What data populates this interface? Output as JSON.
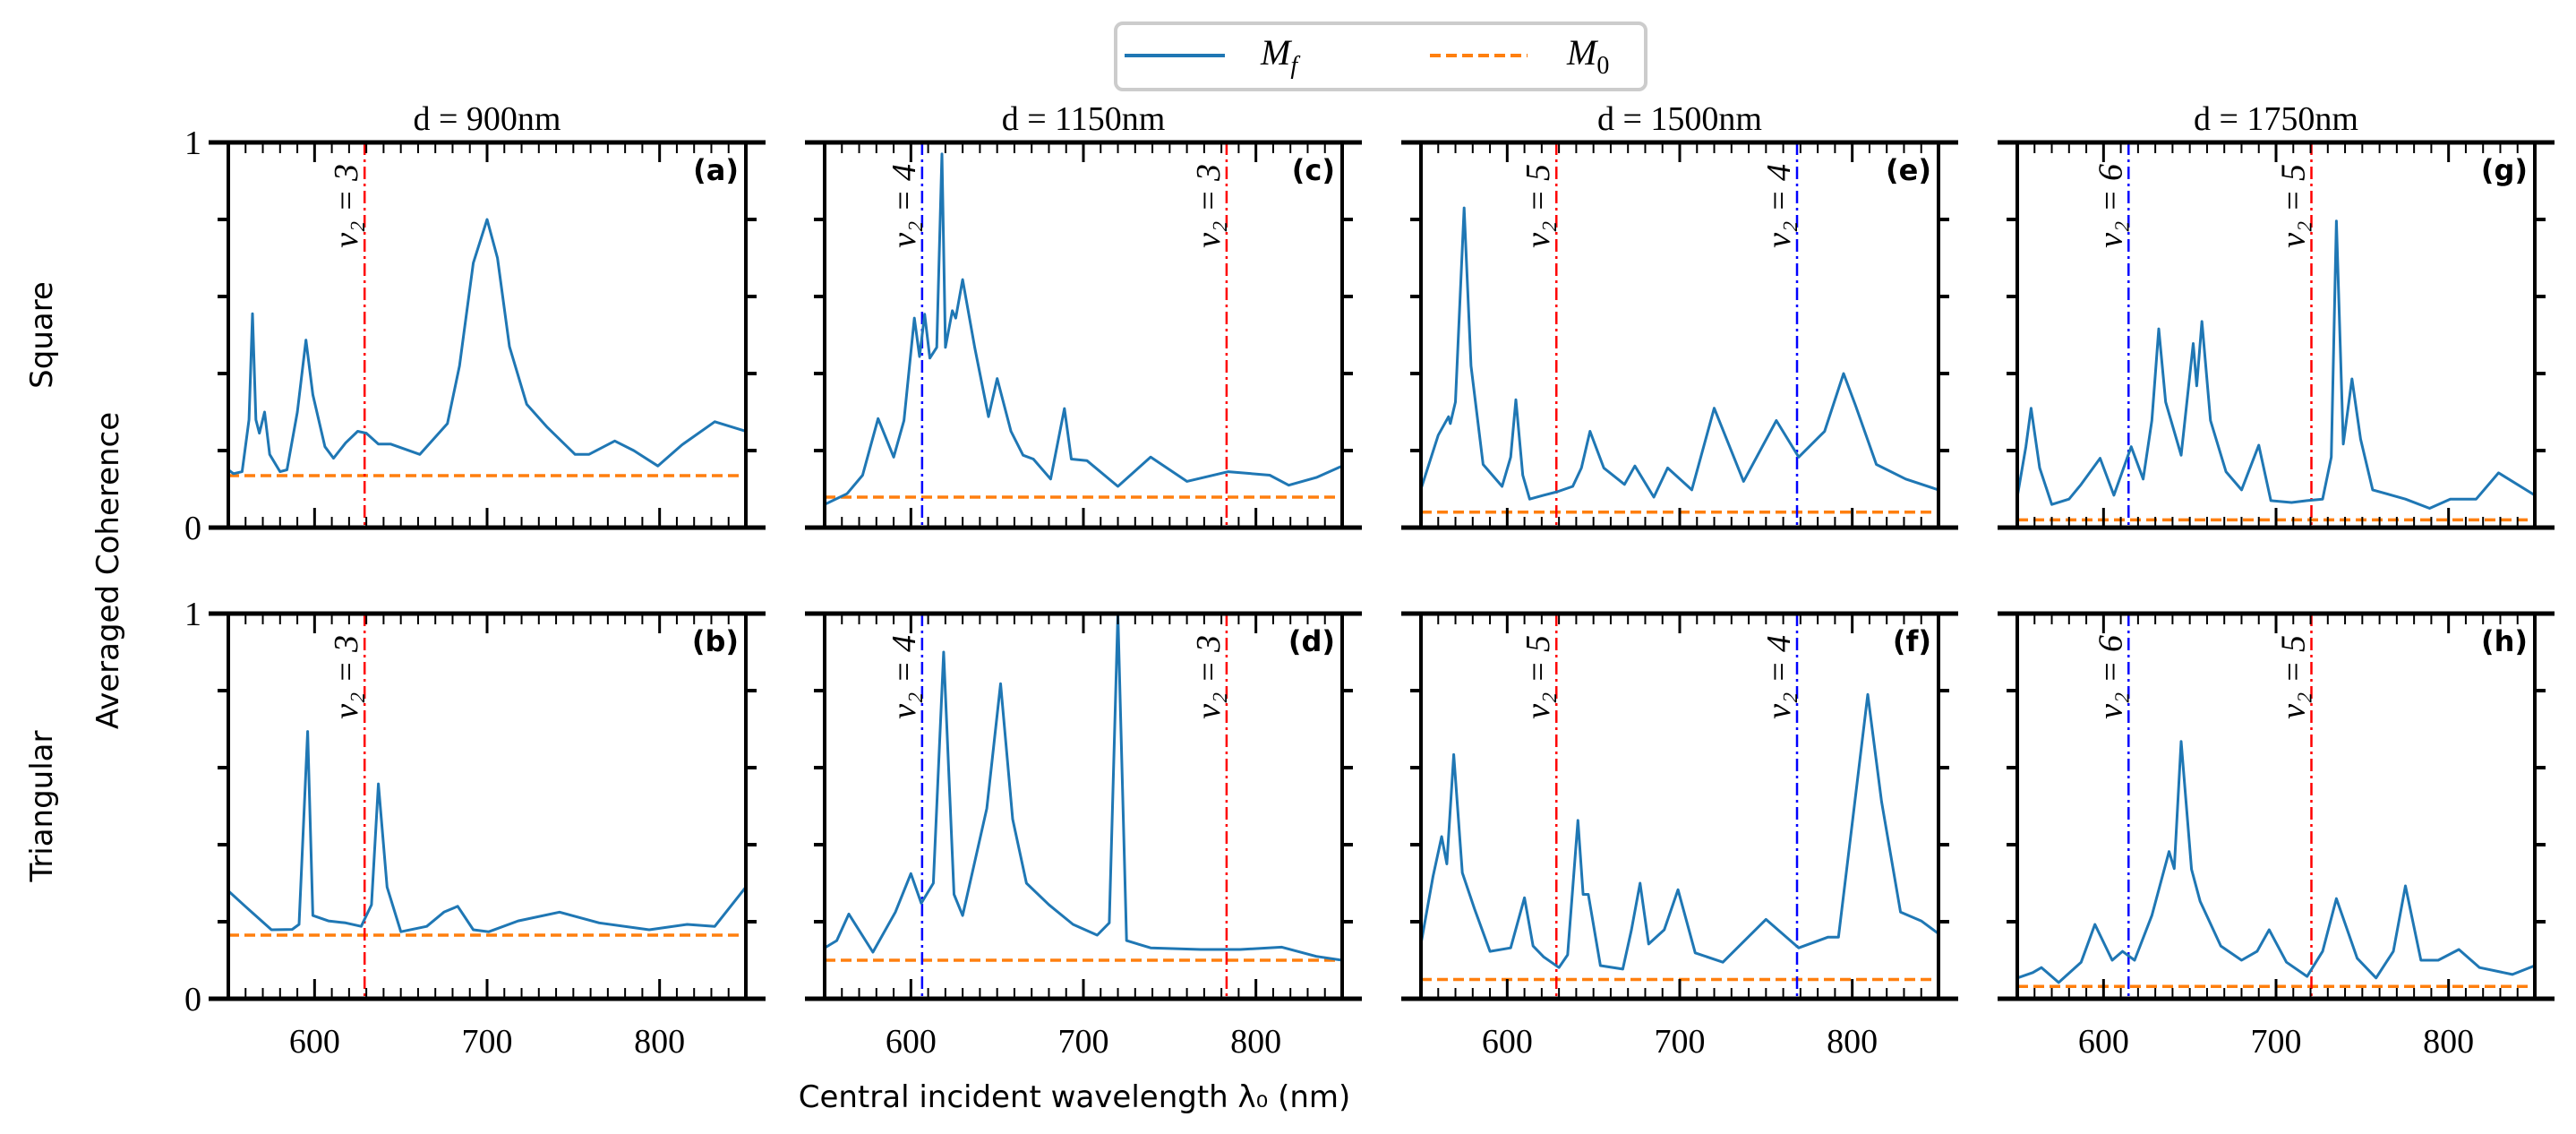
{
  "chart_data": {
    "type": "line",
    "legend": {
      "placement": "top-center",
      "entries": [
        {
          "symbol": "M",
          "sub": "f",
          "color": "#1f77b4",
          "style": "solid"
        },
        {
          "symbol": "M",
          "sub": "0",
          "color": "#ff7f0e",
          "style": "dashed"
        }
      ]
    },
    "xlabel": "Central incident wavelength λ₀ (nm)",
    "ylabel": "Averaged Coherence",
    "row_labels": [
      "Square",
      "Triangular"
    ],
    "xlim": [
      550,
      850
    ],
    "ylim": [
      0,
      1
    ],
    "x_ticks": [
      600,
      700,
      800
    ],
    "x_tick_labels": [
      "600",
      "700",
      "800"
    ],
    "y_ticks": [
      0,
      0.2,
      0.4,
      0.6,
      0.8,
      1.0
    ],
    "y_tick_labels": {
      "0": "0",
      "1": "1"
    },
    "colors": {
      "Mf": "#1f77b4",
      "M0": "#ff7f0e",
      "red_line": "#ff0000",
      "blue_line": "#0000ff"
    },
    "panels": [
      {
        "label": "(a)",
        "title": "d = 900nm",
        "row": "Square",
        "M0": 0.135,
        "vlines": [
          {
            "x": 629,
            "label": "ν₂ = 3",
            "color": "#ff0000"
          }
        ],
        "Mf": {
          "x": [
            550,
            553,
            558,
            562,
            564,
            566,
            568,
            571,
            574,
            580,
            584,
            590,
            595,
            599,
            606,
            611,
            618,
            625,
            630,
            637,
            644,
            661,
            677,
            684,
            692,
            700,
            706,
            713,
            723,
            735,
            751,
            759,
            774,
            785,
            799,
            813,
            832,
            850
          ],
          "y": [
            0.15,
            0.14,
            0.145,
            0.28,
            0.555,
            0.28,
            0.245,
            0.3,
            0.19,
            0.145,
            0.15,
            0.3,
            0.487,
            0.345,
            0.21,
            0.18,
            0.22,
            0.25,
            0.245,
            0.217,
            0.217,
            0.19,
            0.27,
            0.42,
            0.687,
            0.8,
            0.7,
            0.47,
            0.32,
            0.26,
            0.19,
            0.19,
            0.225,
            0.2,
            0.16,
            0.215,
            0.275,
            0.25
          ]
        }
      },
      {
        "label": "(b)",
        "title": "",
        "row": "Triangular",
        "M0": 0.165,
        "vlines": [
          {
            "x": 629,
            "label": "ν₂ = 3",
            "color": "#ff0000"
          }
        ],
        "Mf": {
          "x": [
            550,
            560,
            575,
            587,
            591,
            596,
            599,
            608,
            618,
            627,
            633,
            637,
            642,
            650,
            665,
            675,
            683,
            692,
            701,
            718,
            742,
            765,
            794,
            816,
            832,
            850
          ],
          "y": [
            0.28,
            0.239,
            0.179,
            0.18,
            0.193,
            0.694,
            0.216,
            0.202,
            0.197,
            0.188,
            0.244,
            0.558,
            0.29,
            0.174,
            0.188,
            0.225,
            0.24,
            0.179,
            0.174,
            0.202,
            0.225,
            0.197,
            0.179,
            0.193,
            0.188,
            0.29
          ]
        }
      },
      {
        "label": "(c)",
        "title": "d = 1150nm",
        "row": "Square",
        "M0": 0.079,
        "vlines": [
          {
            "x": 606.5,
            "label": "ν₂ = 4",
            "color": "#0000ff"
          },
          {
            "x": 783,
            "label": "ν₂ = 3",
            "color": "#ff0000"
          }
        ],
        "Mf": {
          "x": [
            550,
            563,
            572,
            581,
            590,
            596,
            602,
            605,
            608,
            611,
            615,
            618,
            620,
            624,
            626,
            630,
            637,
            645,
            650,
            658,
            665,
            671,
            681,
            689,
            693,
            702,
            720,
            739,
            760,
            784,
            808,
            819,
            835,
            850
          ],
          "y": [
            0.06,
            0.088,
            0.136,
            0.283,
            0.183,
            0.278,
            0.544,
            0.444,
            0.554,
            0.44,
            0.468,
            0.97,
            0.468,
            0.563,
            0.544,
            0.644,
            0.468,
            0.288,
            0.387,
            0.25,
            0.188,
            0.178,
            0.126,
            0.309,
            0.178,
            0.174,
            0.107,
            0.183,
            0.12,
            0.145,
            0.136,
            0.11,
            0.13,
            0.16
          ]
        }
      },
      {
        "label": "(d)",
        "title": "",
        "row": "Triangular",
        "M0": 0.1,
        "vlines": [
          {
            "x": 606.5,
            "label": "ν₂ = 4",
            "color": "#0000ff"
          },
          {
            "x": 783,
            "label": "ν₂ = 3",
            "color": "#ff0000"
          }
        ],
        "Mf": {
          "x": [
            550,
            557,
            564,
            578,
            591,
            600,
            606,
            613,
            619,
            625,
            630,
            644,
            652,
            659,
            667,
            680,
            694,
            708,
            715,
            720,
            725,
            739,
            768,
            791,
            815,
            835,
            850
          ],
          "y": [
            0.132,
            0.151,
            0.22,
            0.121,
            0.225,
            0.325,
            0.248,
            0.3,
            0.9,
            0.271,
            0.216,
            0.494,
            0.818,
            0.466,
            0.3,
            0.244,
            0.193,
            0.165,
            0.197,
            1.0,
            0.151,
            0.132,
            0.128,
            0.128,
            0.134,
            0.11,
            0.1
          ]
        }
      },
      {
        "label": "(e)",
        "title": "d = 1500nm",
        "row": "Square",
        "M0": 0.04,
        "vlines": [
          {
            "x": 628.5,
            "label": "ν₂ = 5",
            "color": "#ff0000"
          },
          {
            "x": 768,
            "label": "ν₂ = 4",
            "color": "#0000ff"
          }
        ],
        "Mf": {
          "x": [
            550,
            560,
            566,
            567,
            570,
            575,
            579,
            586,
            597,
            602,
            605,
            609,
            613,
            621,
            629,
            638,
            643,
            648,
            656,
            668,
            674,
            685,
            693,
            707,
            720,
            737,
            756,
            769,
            784,
            795,
            802,
            814,
            831,
            850
          ],
          "y": [
            0.1,
            0.24,
            0.288,
            0.27,
            0.326,
            0.83,
            0.42,
            0.164,
            0.107,
            0.183,
            0.332,
            0.136,
            0.074,
            0.084,
            0.093,
            0.107,
            0.155,
            0.25,
            0.155,
            0.112,
            0.16,
            0.079,
            0.155,
            0.098,
            0.31,
            0.12,
            0.278,
            0.183,
            0.25,
            0.4,
            0.316,
            0.164,
            0.126,
            0.098
          ]
        }
      },
      {
        "label": "(f)",
        "title": "",
        "row": "Triangular",
        "M0": 0.05,
        "vlines": [
          {
            "x": 628.5,
            "label": "ν₂ = 5",
            "color": "#ff0000"
          },
          {
            "x": 768,
            "label": "ν₂ = 4",
            "color": "#0000ff"
          }
        ],
        "Mf": {
          "x": [
            550,
            557,
            562,
            565,
            569,
            574,
            581,
            590,
            602,
            610,
            615,
            621,
            630,
            635,
            641,
            644,
            647,
            654,
            667,
            672,
            677,
            682,
            691,
            699,
            709,
            725,
            750,
            769,
            786,
            792,
            800,
            809,
            817,
            828,
            840,
            850
          ],
          "y": [
            0.142,
            0.318,
            0.421,
            0.35,
            0.634,
            0.327,
            0.234,
            0.123,
            0.132,
            0.262,
            0.137,
            0.109,
            0.081,
            0.114,
            0.463,
            0.271,
            0.271,
            0.086,
            0.077,
            0.179,
            0.3,
            0.142,
            0.179,
            0.283,
            0.119,
            0.095,
            0.206,
            0.132,
            0.16,
            0.16,
            0.456,
            0.79,
            0.512,
            0.225,
            0.202,
            0.169
          ]
        }
      },
      {
        "label": "(g)",
        "title": "d = 1750nm",
        "row": "Square",
        "M0": 0.02,
        "vlines": [
          {
            "x": 614.5,
            "label": "ν₂ = 6",
            "color": "#0000ff"
          },
          {
            "x": 720.5,
            "label": "ν₂ = 5",
            "color": "#ff0000"
          }
        ],
        "Mf": {
          "x": [
            550,
            555,
            558,
            563,
            570,
            580,
            587,
            598,
            606,
            616,
            623,
            628,
            632,
            636,
            645,
            652,
            654,
            657,
            662,
            671,
            680,
            690,
            697,
            709,
            718,
            727,
            732,
            735,
            739,
            744,
            749,
            756,
            775,
            789,
            801,
            816,
            829,
            850
          ],
          "y": [
            0.08,
            0.21,
            0.31,
            0.155,
            0.06,
            0.074,
            0.112,
            0.18,
            0.084,
            0.21,
            0.126,
            0.278,
            0.516,
            0.326,
            0.188,
            0.478,
            0.368,
            0.535,
            0.278,
            0.145,
            0.098,
            0.214,
            0.07,
            0.065,
            0.07,
            0.074,
            0.183,
            0.796,
            0.217,
            0.386,
            0.23,
            0.098,
            0.074,
            0.05,
            0.074,
            0.074,
            0.142,
            0.084
          ]
        }
      },
      {
        "label": "(h)",
        "title": "",
        "row": "Triangular",
        "M0": 0.032,
        "vlines": [
          {
            "x": 614.5,
            "label": "ν₂ = 6",
            "color": "#0000ff"
          },
          {
            "x": 720.5,
            "label": "ν₂ = 5",
            "color": "#ff0000"
          }
        ],
        "Mf": {
          "x": [
            550,
            559,
            564,
            574,
            587,
            595,
            605,
            611,
            618,
            628,
            638,
            641,
            645,
            651,
            656,
            668,
            680,
            689,
            696,
            706,
            718,
            727,
            735,
            747,
            758,
            768,
            775,
            784,
            794,
            806,
            818,
            837,
            850
          ],
          "y": [
            0.054,
            0.068,
            0.081,
            0.042,
            0.095,
            0.193,
            0.1,
            0.123,
            0.1,
            0.216,
            0.382,
            0.338,
            0.668,
            0.336,
            0.253,
            0.137,
            0.1,
            0.123,
            0.179,
            0.095,
            0.058,
            0.123,
            0.26,
            0.105,
            0.054,
            0.123,
            0.293,
            0.1,
            0.1,
            0.128,
            0.081,
            0.063,
            0.086
          ]
        }
      }
    ]
  }
}
